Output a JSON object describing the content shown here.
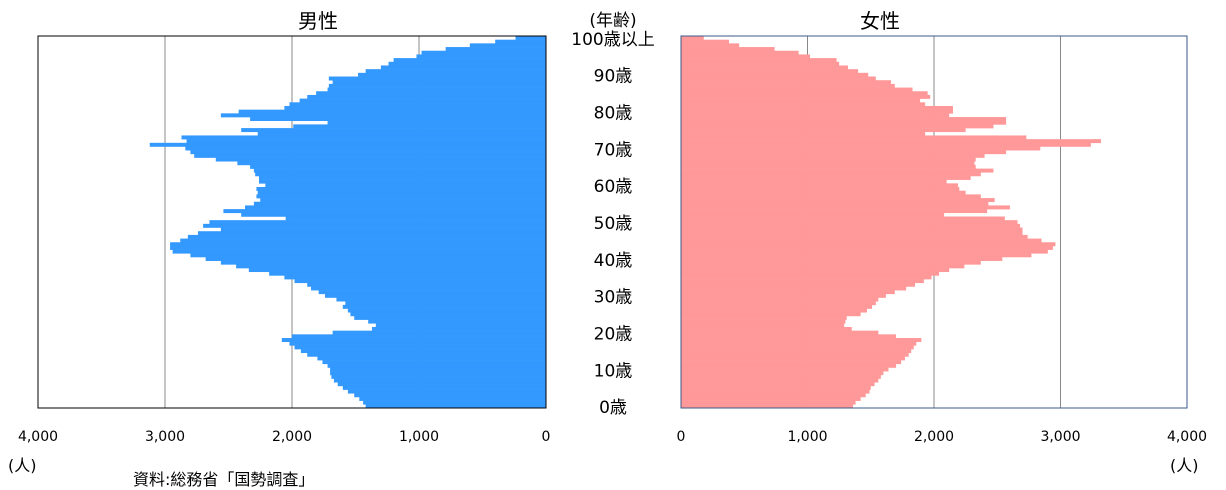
{
  "chart_data": {
    "type": "bar",
    "orientation": "horizontal-pyramid",
    "age_axis_label": "(年齢)",
    "age_tick_labels": [
      "0歳",
      "10歳",
      "20歳",
      "30歳",
      "40歳",
      "50歳",
      "60歳",
      "70歳",
      "80歳",
      "90歳",
      "100歳以上"
    ],
    "x_unit_label": "(人)",
    "source": "資料:総務省「国勢調査」",
    "x_tick_labels": [
      "0",
      "1,000",
      "2,000",
      "3,000",
      "4,000"
    ],
    "xlim": [
      0,
      4000
    ],
    "ages": [
      0,
      1,
      2,
      3,
      4,
      5,
      6,
      7,
      8,
      9,
      10,
      11,
      12,
      13,
      14,
      15,
      16,
      17,
      18,
      19,
      20,
      21,
      22,
      23,
      24,
      25,
      26,
      27,
      28,
      29,
      30,
      31,
      32,
      33,
      34,
      35,
      36,
      37,
      38,
      39,
      40,
      41,
      42,
      43,
      44,
      45,
      46,
      47,
      48,
      49,
      50,
      51,
      52,
      53,
      54,
      55,
      56,
      57,
      58,
      59,
      60,
      61,
      62,
      63,
      64,
      65,
      66,
      67,
      68,
      69,
      70,
      71,
      72,
      73,
      74,
      75,
      76,
      77,
      78,
      79,
      80,
      81,
      82,
      83,
      84,
      85,
      86,
      87,
      88,
      89,
      90,
      91,
      92,
      93,
      94,
      95,
      96,
      97,
      98,
      99,
      100
    ],
    "series": [
      {
        "name": "男性",
        "color": "#3399ff",
        "values": [
          1420,
          1440,
          1470,
          1510,
          1560,
          1600,
          1640,
          1670,
          1690,
          1700,
          1700,
          1720,
          1760,
          1800,
          1880,
          1930,
          1980,
          2020,
          2080,
          2000,
          1680,
          1370,
          1340,
          1400,
          1510,
          1540,
          1560,
          1600,
          1580,
          1650,
          1740,
          1790,
          1850,
          1880,
          1980,
          2060,
          2180,
          2340,
          2440,
          2560,
          2680,
          2800,
          2940,
          2960,
          2960,
          2880,
          2820,
          2740,
          2560,
          2700,
          2650,
          2050,
          2400,
          2540,
          2370,
          2300,
          2250,
          2280,
          2270,
          2280,
          2210,
          2260,
          2260,
          2290,
          2300,
          2330,
          2430,
          2600,
          2770,
          2800,
          2840,
          3120,
          2830,
          2870,
          2270,
          2400,
          1990,
          1720,
          2330,
          2560,
          2420,
          2060,
          2020,
          1940,
          1880,
          1810,
          1720,
          1710,
          1680,
          1710,
          1480,
          1420,
          1300,
          1240,
          1200,
          1020,
          980,
          790,
          600,
          400,
          240
        ]
      },
      {
        "name": "女性",
        "color": "#ff9999",
        "values": [
          1360,
          1380,
          1420,
          1460,
          1490,
          1500,
          1530,
          1560,
          1580,
          1600,
          1640,
          1700,
          1740,
          1770,
          1800,
          1820,
          1840,
          1860,
          1900,
          1700,
          1560,
          1350,
          1290,
          1300,
          1310,
          1420,
          1470,
          1510,
          1540,
          1560,
          1620,
          1690,
          1780,
          1850,
          1920,
          1980,
          2040,
          2120,
          2240,
          2370,
          2540,
          2770,
          2900,
          2940,
          2960,
          2850,
          2740,
          2700,
          2700,
          2680,
          2660,
          2560,
          2080,
          2420,
          2600,
          2430,
          2480,
          2370,
          2250,
          2200,
          2190,
          2100,
          2290,
          2370,
          2470,
          2330,
          2320,
          2330,
          2400,
          2570,
          2840,
          3240,
          3320,
          2730,
          1930,
          2250,
          2470,
          2570,
          2570,
          2120,
          2150,
          2150,
          1930,
          1890,
          1970,
          1950,
          1830,
          1690,
          1660,
          1540,
          1480,
          1400,
          1320,
          1250,
          1230,
          1020,
          930,
          740,
          460,
          380,
          180
        ]
      }
    ]
  }
}
